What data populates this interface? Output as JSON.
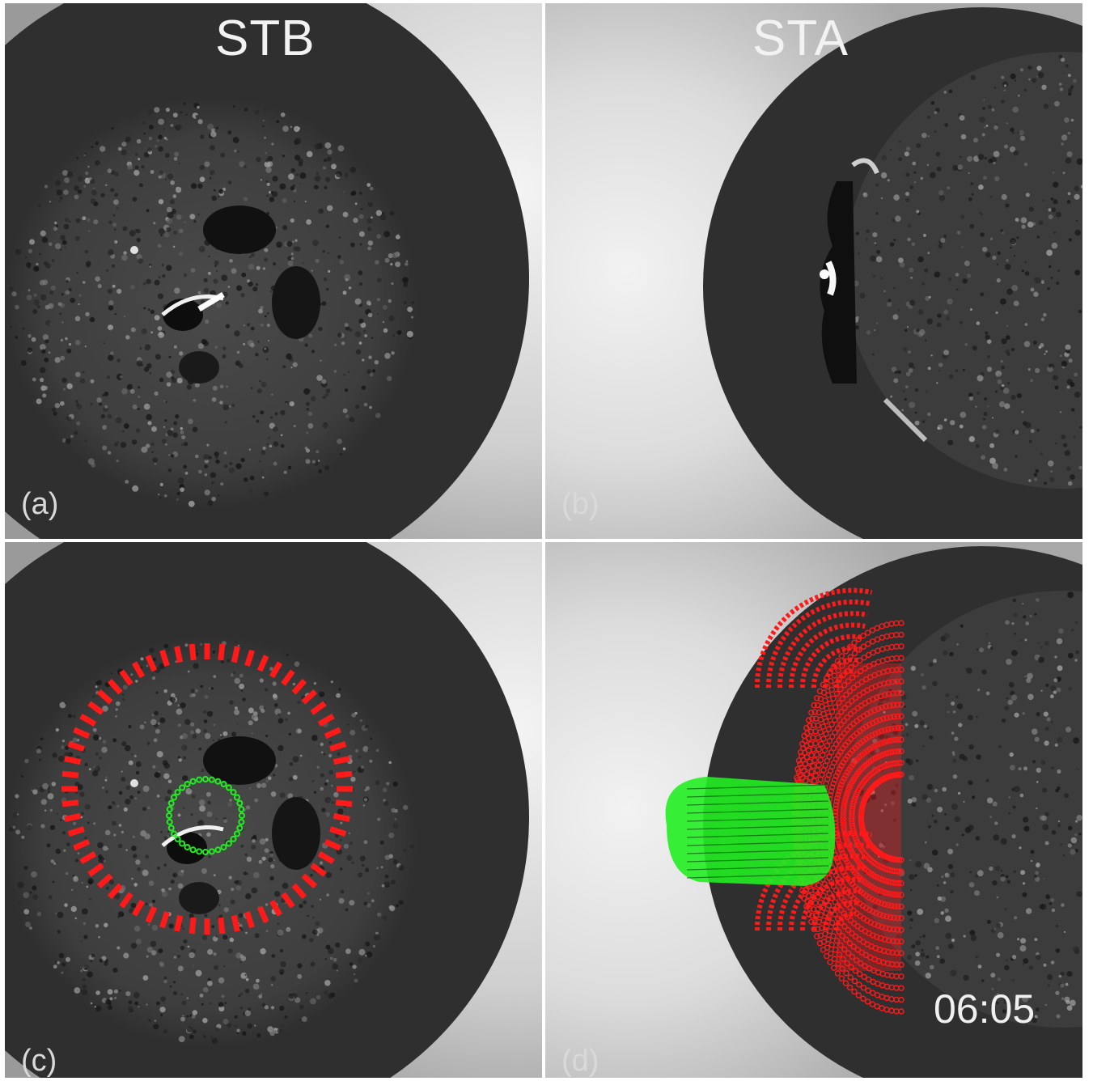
{
  "panels": {
    "a": {
      "label": "(a)",
      "header": "STB"
    },
    "b": {
      "label": "(b)",
      "header": "STA"
    },
    "c": {
      "label": "(c)"
    },
    "d": {
      "label": "(d)",
      "timestamp": "06:05"
    }
  },
  "colors": {
    "occulter": "#2f2f2f",
    "corona_bright": "#e8e8e8",
    "model_red": "#ff1a1a",
    "model_green": "#22ee22",
    "divider": "#ffffff"
  }
}
